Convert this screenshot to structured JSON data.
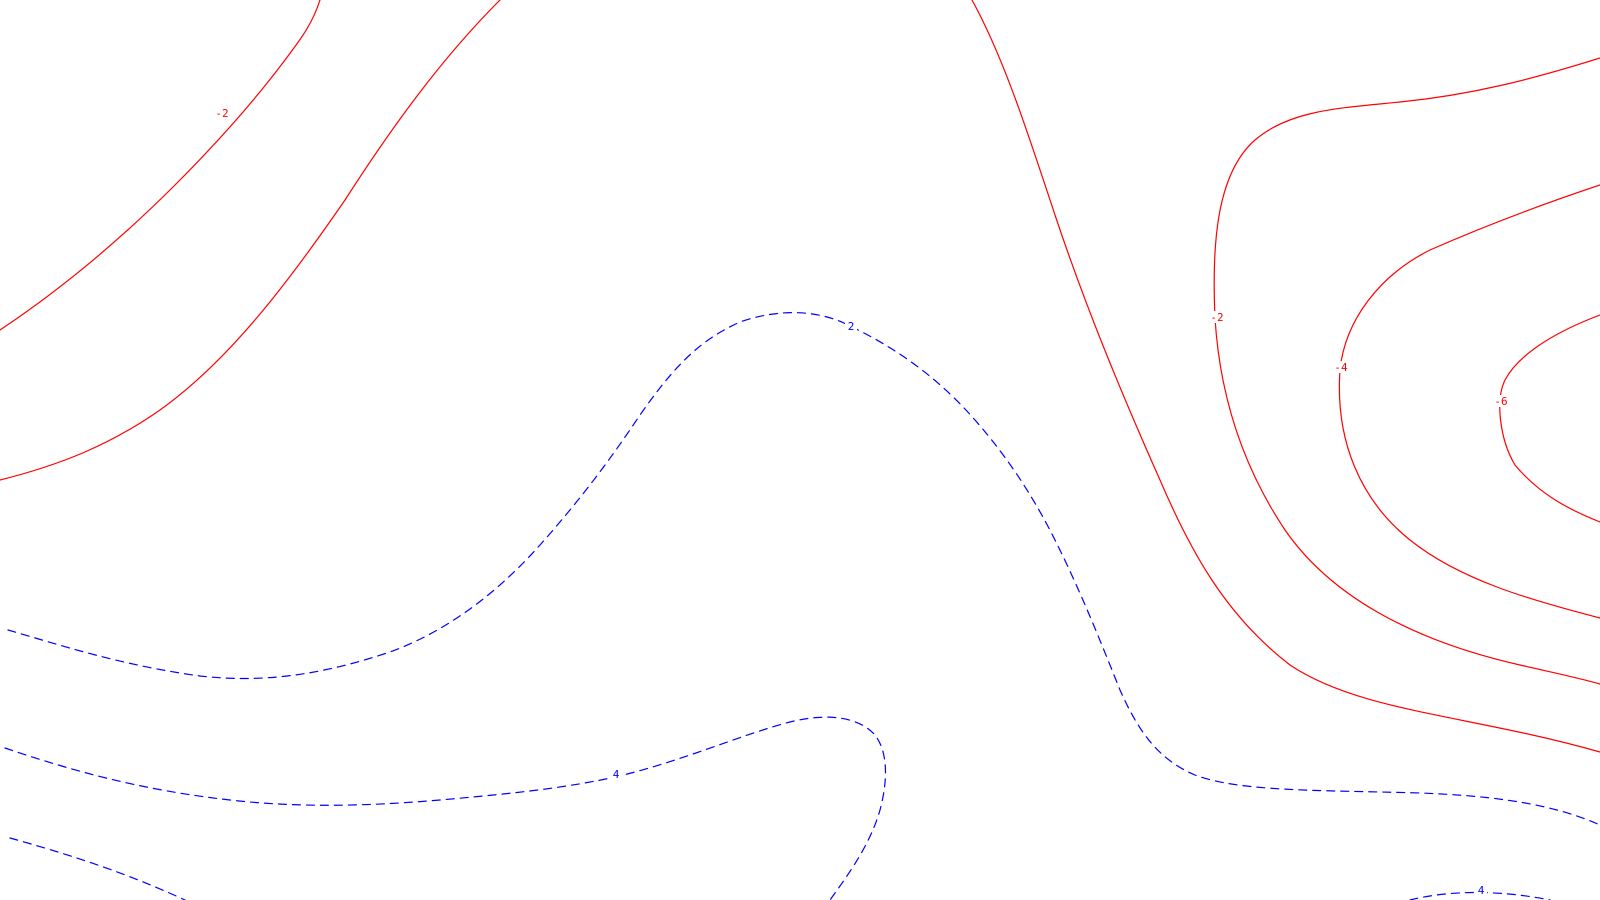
{
  "map": {
    "background": "#ffffff",
    "negative_color": "#ff0000",
    "positive_color": "#0000ff",
    "negative_style": "solid",
    "positive_style": "dashed",
    "contour_levels": [
      -6,
      -4,
      -2,
      2,
      4
    ]
  },
  "labels": {
    "neg_2_top_left": "-2",
    "neg_2_right": "-2",
    "neg_4_right": "-4",
    "neg_6_right": "-6",
    "pos_2_center": "2",
    "pos_4_bottom": "4",
    "pos_4_bottom_right": "4"
  }
}
